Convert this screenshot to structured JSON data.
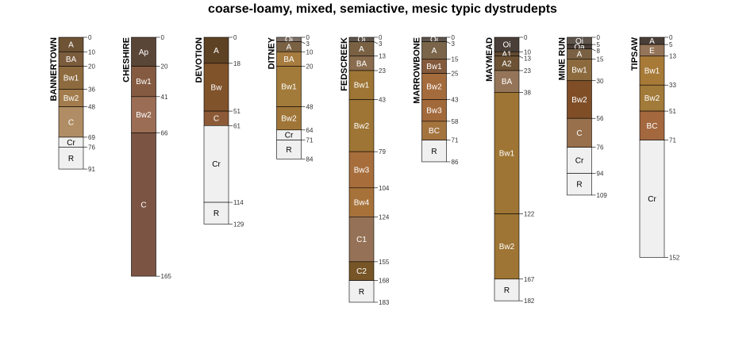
{
  "chart_data": {
    "type": "soil-profile",
    "title": "coarse-loamy, mixed, semiactive, mesic typic dystrudepts",
    "depth_units": "cm",
    "depth_range": [
      0,
      183
    ],
    "profiles": [
      {
        "name": "BANNERTOWN",
        "horizons": [
          {
            "name": "A",
            "top": 0,
            "bottom": 10,
            "color": "#6e5335"
          },
          {
            "name": "BA",
            "top": 10,
            "bottom": 20,
            "color": "#7b5c3c"
          },
          {
            "name": "Bw1",
            "top": 20,
            "bottom": 36,
            "color": "#8e6b3f"
          },
          {
            "name": "Bw2",
            "top": 36,
            "bottom": 48,
            "color": "#a27c4c"
          },
          {
            "name": "C",
            "top": 48,
            "bottom": 69,
            "color": "#b08d64"
          },
          {
            "name": "Cr",
            "top": 69,
            "bottom": 76,
            "color": "#f0f0f0"
          },
          {
            "name": "R",
            "top": 76,
            "bottom": 91,
            "color": "#f0f0f0"
          }
        ]
      },
      {
        "name": "CHESHIRE",
        "horizons": [
          {
            "name": "Ap",
            "top": 0,
            "bottom": 20,
            "color": "#5a4637"
          },
          {
            "name": "Bw1",
            "top": 20,
            "bottom": 41,
            "color": "#845a41"
          },
          {
            "name": "Bw2",
            "top": 41,
            "bottom": 66,
            "color": "#9b6d55"
          },
          {
            "name": "C",
            "top": 66,
            "bottom": 165,
            "color": "#7c5443"
          }
        ]
      },
      {
        "name": "DEVOTION",
        "horizons": [
          {
            "name": "A",
            "top": 0,
            "bottom": 18,
            "color": "#5e4224"
          },
          {
            "name": "Bw",
            "top": 18,
            "bottom": 51,
            "color": "#81532b"
          },
          {
            "name": "C",
            "top": 51,
            "bottom": 61,
            "color": "#8c5a36"
          },
          {
            "name": "Cr",
            "top": 61,
            "bottom": 114,
            "color": "#f0f0f0"
          },
          {
            "name": "R",
            "top": 114,
            "bottom": 129,
            "color": "#f0f0f0"
          }
        ]
      },
      {
        "name": "DITNEY",
        "horizons": [
          {
            "name": "Oi",
            "top": 0,
            "bottom": 3,
            "color": "#7e7064"
          },
          {
            "name": "A",
            "top": 3,
            "bottom": 10,
            "color": "#7a6144"
          },
          {
            "name": "BA",
            "top": 10,
            "bottom": 20,
            "color": "#a77c3f"
          },
          {
            "name": "Bw1",
            "top": 20,
            "bottom": 48,
            "color": "#a27a39"
          },
          {
            "name": "Bw2",
            "top": 48,
            "bottom": 64,
            "color": "#a07638"
          },
          {
            "name": "Cr",
            "top": 64,
            "bottom": 71,
            "color": "#f0f0f0"
          },
          {
            "name": "R",
            "top": 71,
            "bottom": 84,
            "color": "#f0f0f0"
          }
        ]
      },
      {
        "name": "FEDSCREEK",
        "horizons": [
          {
            "name": "Oi",
            "top": 0,
            "bottom": 3,
            "color": "#5e544b"
          },
          {
            "name": "A",
            "top": 3,
            "bottom": 13,
            "color": "#7a6144"
          },
          {
            "name": "BA",
            "top": 13,
            "bottom": 23,
            "color": "#8a6c4e"
          },
          {
            "name": "Bw1",
            "top": 23,
            "bottom": 43,
            "color": "#9e7534"
          },
          {
            "name": "Bw2",
            "top": 43,
            "bottom": 79,
            "color": "#9e7534"
          },
          {
            "name": "Bw3",
            "top": 79,
            "bottom": 104,
            "color": "#a76e3c"
          },
          {
            "name": "Bw4",
            "top": 104,
            "bottom": 124,
            "color": "#a7723a"
          },
          {
            "name": "C1",
            "top": 124,
            "bottom": 155,
            "color": "#957257"
          },
          {
            "name": "C2",
            "top": 155,
            "bottom": 168,
            "color": "#775526"
          },
          {
            "name": "R",
            "top": 168,
            "bottom": 183,
            "color": "#f0f0f0"
          }
        ]
      },
      {
        "name": "MARROWBONE",
        "horizons": [
          {
            "name": "Oi",
            "top": 0,
            "bottom": 3,
            "color": "#5e544b"
          },
          {
            "name": "A",
            "top": 3,
            "bottom": 15,
            "color": "#7a654a"
          },
          {
            "name": "Bw1",
            "top": 15,
            "bottom": 25,
            "color": "#845a3c"
          },
          {
            "name": "Bw2",
            "top": 25,
            "bottom": 43,
            "color": "#a46b3c"
          },
          {
            "name": "Bw3",
            "top": 43,
            "bottom": 58,
            "color": "#a2693b"
          },
          {
            "name": "BC",
            "top": 58,
            "bottom": 71,
            "color": "#a4743f"
          },
          {
            "name": "R",
            "top": 71,
            "bottom": 86,
            "color": "#f0f0f0"
          }
        ]
      },
      {
        "name": "MAYMEAD",
        "horizons": [
          {
            "name": "Oi",
            "top": 0,
            "bottom": 10,
            "color": "#4a3f38"
          },
          {
            "name": "A1",
            "top": 10,
            "bottom": 13,
            "color": "#624a31"
          },
          {
            "name": "A2",
            "top": 13,
            "bottom": 23,
            "color": "#6d5334"
          },
          {
            "name": "BA",
            "top": 23,
            "bottom": 38,
            "color": "#957559"
          },
          {
            "name": "Bw1",
            "top": 38,
            "bottom": 122,
            "color": "#9e7534"
          },
          {
            "name": "Bw2",
            "top": 122,
            "bottom": 167,
            "color": "#9e7534"
          },
          {
            "name": "R",
            "top": 167,
            "bottom": 182,
            "color": "#f0f0f0"
          }
        ]
      },
      {
        "name": "MINE RUN",
        "horizons": [
          {
            "name": "Oi",
            "top": 0,
            "bottom": 5,
            "color": "#5e544b"
          },
          {
            "name": "Oa",
            "top": 5,
            "bottom": 8,
            "color": "#4a3f38"
          },
          {
            "name": "A",
            "top": 8,
            "bottom": 15,
            "color": "#7a6144"
          },
          {
            "name": "Bw1",
            "top": 15,
            "bottom": 30,
            "color": "#8c6a3d"
          },
          {
            "name": "Bw2",
            "top": 30,
            "bottom": 56,
            "color": "#7f4e27"
          },
          {
            "name": "C",
            "top": 56,
            "bottom": 76,
            "color": "#98704c"
          },
          {
            "name": "Cr",
            "top": 76,
            "bottom": 94,
            "color": "#f0f0f0"
          },
          {
            "name": "R",
            "top": 94,
            "bottom": 109,
            "color": "#f0f0f0"
          }
        ]
      },
      {
        "name": "TIPSAW",
        "horizons": [
          {
            "name": "A",
            "top": 0,
            "bottom": 5,
            "color": "#4a3f38"
          },
          {
            "name": "E",
            "top": 5,
            "bottom": 13,
            "color": "#957559"
          },
          {
            "name": "Bw1",
            "top": 13,
            "bottom": 33,
            "color": "#a77a38"
          },
          {
            "name": "Bw2",
            "top": 33,
            "bottom": 51,
            "color": "#a27a39"
          },
          {
            "name": "BC",
            "top": 51,
            "bottom": 71,
            "color": "#a4683f"
          },
          {
            "name": "Cr",
            "top": 71,
            "bottom": 152,
            "color": "#f0f0f0"
          }
        ]
      }
    ]
  }
}
